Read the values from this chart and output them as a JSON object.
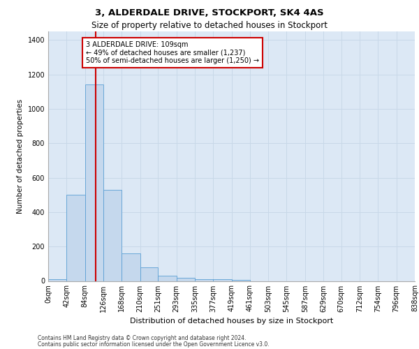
{
  "title1": "3, ALDERDALE DRIVE, STOCKPORT, SK4 4AS",
  "title2": "Size of property relative to detached houses in Stockport",
  "xlabel": "Distribution of detached houses by size in Stockport",
  "ylabel": "Number of detached properties",
  "bin_edges": [
    0,
    42,
    84,
    126,
    168,
    210,
    251,
    293,
    335,
    377,
    419,
    461,
    503,
    545,
    587,
    629,
    670,
    712,
    754,
    796,
    838
  ],
  "bar_heights": [
    10,
    500,
    1140,
    530,
    160,
    80,
    30,
    20,
    10,
    10,
    5,
    0,
    0,
    0,
    0,
    0,
    0,
    0,
    0,
    0
  ],
  "bar_color": "#c5d8ed",
  "bar_edge_color": "#5a9fd4",
  "grid_color": "#c8d8e8",
  "background_color": "#dce8f5",
  "vline_x": 109,
  "vline_color": "#cc0000",
  "annotation_line1": "3 ALDERDALE DRIVE: 109sqm",
  "annotation_line2": "← 49% of detached houses are smaller (1,237)",
  "annotation_line3": "50% of semi-detached houses are larger (1,250) →",
  "annotation_box_color": "#cc0000",
  "annotation_bg": "#ffffff",
  "ylim": [
    0,
    1450
  ],
  "yticks": [
    0,
    200,
    400,
    600,
    800,
    1000,
    1200,
    1400
  ],
  "footer1": "Contains HM Land Registry data © Crown copyright and database right 2024.",
  "footer2": "Contains public sector information licensed under the Open Government Licence v3.0.",
  "title1_fontsize": 9.5,
  "title2_fontsize": 8.5,
  "tick_fontsize": 7,
  "ylabel_fontsize": 7.5,
  "xlabel_fontsize": 8,
  "annotation_fontsize": 7,
  "footer_fontsize": 5.5
}
